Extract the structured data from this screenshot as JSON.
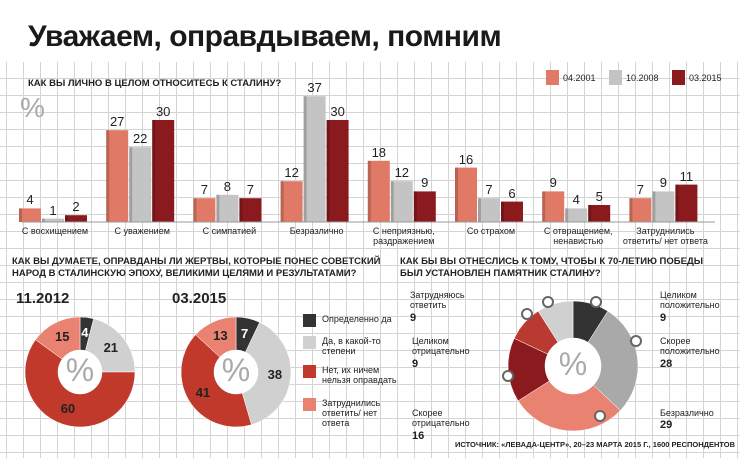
{
  "title": "Уважаем, оправдываем, помним",
  "source": "ИСТОЧНИК: «ЛЕВАДА-ЦЕНТР», 20–23 МАРТА 2015 Г., 1600 РЕСПОНДЕНТОВ",
  "percent_sign": "%",
  "colors": {
    "y2001": "#e07a66",
    "y2008": "#c4c4c4",
    "y2015": "#8b1a1f",
    "dark": "#333333",
    "lightgrey": "#d0d0d0",
    "grey": "#a9a9a9",
    "red": "#c0392b",
    "salmon": "#e98270",
    "darkred": "#8b1a1f",
    "midred": "#b83a30"
  },
  "chart_data": [
    {
      "type": "bar",
      "title": "КАК ВЫ ЛИЧНО В ЦЕЛОМ ОТНОСИТЕСЬ К СТАЛИНУ?",
      "ylabel": "%",
      "categories": [
        "С восхищением",
        "С уважением",
        "С симпатией",
        "Безразлично",
        "С неприязнью, раздражением",
        "Со страхом",
        "С отвращением, ненавистью",
        "Затруднились ответить/ нет ответа"
      ],
      "series": [
        {
          "name": "04.2001",
          "values": [
            4,
            27,
            7,
            12,
            18,
            16,
            9,
            7
          ]
        },
        {
          "name": "10.2008",
          "values": [
            1,
            22,
            8,
            37,
            12,
            7,
            4,
            9
          ]
        },
        {
          "name": "03.2015",
          "values": [
            2,
            30,
            7,
            30,
            9,
            6,
            5,
            11
          ]
        }
      ],
      "ylim": [
        0,
        40
      ],
      "legend": "top-right"
    },
    {
      "type": "pie",
      "title": "КАК ВЫ ДУМАЕТЕ, ОПРАВДАНЫ ЛИ ЖЕРТВЫ, КОТОРЫЕ ПОНЕС СОВЕТСКИЙ НАРОД В СТАЛИНСКУЮ ЭПОХУ, ВЕЛИКИМИ ЦЕЛЯМИ И РЕЗУЛЬТАТАМИ?",
      "categories": [
        "Определенно да",
        "Да, в какой-то степени",
        "Нет, их ничем нельзя оправдать",
        "Затруднились ответить/ нет ответа"
      ],
      "series": [
        {
          "name": "11.2012",
          "values": [
            4,
            21,
            60,
            15
          ]
        },
        {
          "name": "03.2015",
          "values": [
            7,
            38,
            41,
            13
          ]
        }
      ]
    },
    {
      "type": "pie",
      "title": "КАК БЫ ВЫ ОТНЕСЛИСЬ К ТОМУ, ЧТОБЫ К 70-ЛЕТИЮ ПОБЕДЫ БЫЛ УСТАНОВЛЕН ПАМЯТНИК СТАЛИНУ?",
      "categories": [
        "Целиком положительно",
        "Скорее положительно",
        "Безразлично",
        "Скорее отрицательно",
        "Целиком отрицательно",
        "Затрудняюсь ответить"
      ],
      "values": [
        9,
        28,
        29,
        16,
        9,
        9
      ]
    }
  ]
}
